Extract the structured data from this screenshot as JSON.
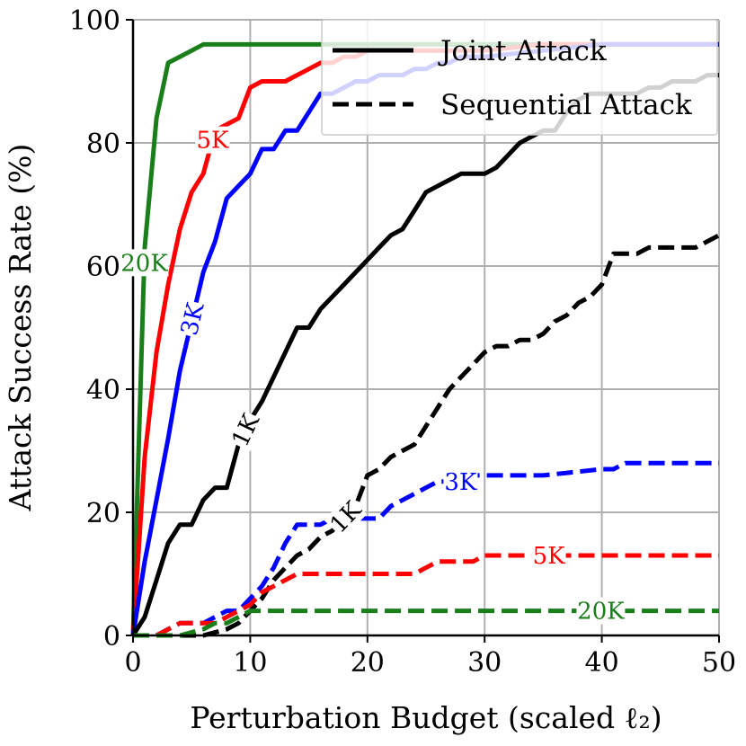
{
  "chart_data": {
    "type": "line",
    "xlabel": "Perturbation Budget (scaled ℓ₂)",
    "ylabel": "Attack Success Rate (%)",
    "xlim": [
      0,
      50
    ],
    "ylim": [
      0,
      100
    ],
    "xticks": [
      0,
      10,
      20,
      30,
      40,
      50
    ],
    "yticks": [
      0,
      20,
      40,
      60,
      80,
      100
    ],
    "grid": true,
    "legend_position": "top-right",
    "legend": [
      {
        "label": "Joint Attack",
        "style": "solid"
      },
      {
        "label": "Sequential Attack",
        "style": "dashed"
      }
    ],
    "series": [
      {
        "label": "20K",
        "group": "Joint Attack",
        "style": "solid",
        "color": "#1a7f1a",
        "x": [
          0,
          1,
          2,
          3,
          4,
          5,
          6,
          8,
          10,
          20,
          30,
          40,
          50
        ],
        "y": [
          0,
          63,
          84,
          93,
          94,
          95,
          96,
          96,
          96,
          96,
          96,
          96,
          96
        ]
      },
      {
        "label": "5K",
        "group": "Joint Attack",
        "style": "solid",
        "color": "#ff0000",
        "x": [
          0,
          1,
          2,
          3,
          4,
          5,
          6,
          7,
          8,
          9,
          10,
          11,
          12,
          13,
          14,
          15,
          16,
          17,
          18,
          19,
          20,
          25,
          30,
          35,
          40,
          50
        ],
        "y": [
          0,
          29,
          46,
          57,
          66,
          72,
          75,
          82,
          83,
          84,
          89,
          90,
          90,
          90,
          91,
          92,
          93,
          93,
          94,
          94,
          95,
          95,
          95,
          96,
          96,
          96
        ]
      },
      {
        "label": "3K",
        "group": "Joint Attack",
        "style": "solid",
        "color": "#0000ff",
        "x": [
          0,
          1,
          2,
          3,
          4,
          5,
          6,
          7,
          8,
          9,
          10,
          11,
          12,
          13,
          14,
          15,
          16,
          17,
          18,
          19,
          20,
          21,
          22,
          23,
          24,
          25,
          26,
          27,
          28,
          29,
          30,
          35,
          40,
          50
        ],
        "y": [
          0,
          12,
          22,
          32,
          43,
          51,
          59,
          64,
          71,
          73,
          75,
          79,
          79,
          82,
          82,
          85,
          88,
          88,
          89,
          90,
          90,
          91,
          91,
          91,
          92,
          92,
          93,
          93,
          94,
          94,
          94,
          95,
          96,
          96
        ]
      },
      {
        "label": "1K",
        "group": "Joint Attack",
        "style": "solid",
        "color": "#000000",
        "x": [
          0,
          1,
          2,
          3,
          4,
          5,
          6,
          7,
          8,
          9,
          10,
          11,
          12,
          13,
          14,
          15,
          16,
          17,
          18,
          19,
          20,
          21,
          22,
          23,
          24,
          25,
          26,
          27,
          28,
          29,
          30,
          31,
          32,
          33,
          34,
          35,
          36,
          37,
          38,
          39,
          40,
          41,
          42,
          43,
          44,
          45,
          46,
          47,
          48,
          49,
          50
        ],
        "y": [
          0,
          3,
          9,
          15,
          18,
          18,
          22,
          24,
          24,
          31,
          35,
          38,
          42,
          46,
          50,
          50,
          53,
          55,
          57,
          59,
          61,
          63,
          65,
          66,
          69,
          72,
          73,
          74,
          75,
          75,
          75,
          76,
          78,
          80,
          81,
          82,
          82,
          85,
          87,
          88,
          88,
          88,
          88,
          88,
          89,
          89,
          90,
          90,
          90,
          91,
          91
        ]
      },
      {
        "label": "1K",
        "group": "Sequential Attack",
        "style": "dashed",
        "color": "#000000",
        "x": [
          0,
          2,
          4,
          6,
          8,
          9,
          10,
          11,
          12,
          13,
          14,
          15,
          16,
          17,
          18,
          19,
          20,
          21,
          22,
          23,
          24,
          25,
          26,
          27,
          28,
          29,
          30,
          31,
          32,
          33,
          34,
          35,
          36,
          37,
          38,
          39,
          40,
          41,
          42,
          43,
          44,
          45,
          46,
          47,
          48,
          49,
          50
        ],
        "y": [
          0,
          0,
          0,
          0,
          1,
          2,
          4,
          6,
          9,
          11,
          13,
          14,
          16,
          17,
          19,
          21,
          26,
          27,
          29,
          30,
          31,
          34,
          37,
          40,
          42,
          44,
          46,
          47,
          47,
          48,
          48,
          49,
          51,
          52,
          54,
          55,
          57,
          62,
          62,
          62,
          63,
          63,
          63,
          63,
          63,
          64,
          65
        ]
      },
      {
        "label": "3K",
        "group": "Sequential Attack",
        "style": "dashed",
        "color": "#0000ff",
        "x": [
          0,
          2,
          3,
          4,
          5,
          6,
          7,
          8,
          9,
          10,
          11,
          12,
          13,
          14,
          15,
          16,
          17,
          18,
          19,
          20,
          21,
          22,
          23,
          24,
          25,
          26,
          27,
          28,
          29,
          30,
          35,
          40,
          41,
          42,
          50
        ],
        "y": [
          0,
          0,
          1,
          2,
          2,
          2,
          3,
          4,
          4,
          6,
          8,
          11,
          15,
          18,
          18,
          18,
          19,
          19,
          19,
          19,
          19,
          21,
          22,
          23,
          24,
          25,
          25,
          25,
          26,
          26,
          26,
          27,
          27,
          28,
          28
        ]
      },
      {
        "label": "5K",
        "group": "Sequential Attack",
        "style": "dashed",
        "color": "#ff0000",
        "x": [
          0,
          2,
          4,
          6,
          7,
          8,
          9,
          10,
          11,
          12,
          13,
          14,
          15,
          16,
          20,
          24,
          25,
          26,
          29,
          30,
          35,
          40,
          50
        ],
        "y": [
          0,
          0,
          2,
          2,
          2,
          3,
          4,
          5,
          7,
          8,
          9,
          10,
          10,
          10,
          10,
          10,
          11,
          12,
          12,
          13,
          13,
          13,
          13
        ]
      },
      {
        "label": "20K",
        "group": "Sequential Attack",
        "style": "dashed",
        "color": "#1a7f1a",
        "x": [
          0,
          2,
          4,
          6,
          7,
          8,
          9,
          10,
          11,
          12,
          20,
          30,
          40,
          50
        ],
        "y": [
          0,
          0,
          0,
          1,
          2,
          2,
          3,
          4,
          4,
          4,
          4,
          4,
          4,
          4
        ]
      }
    ]
  }
}
